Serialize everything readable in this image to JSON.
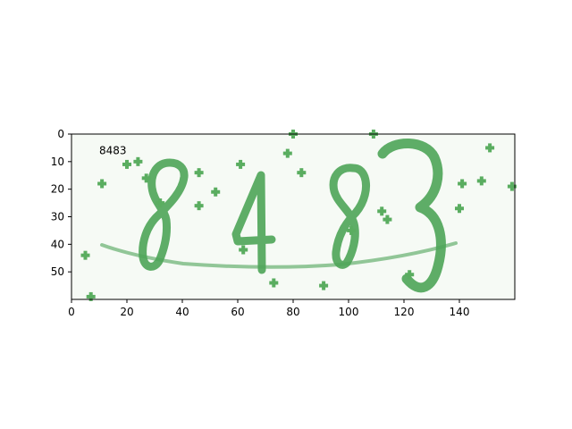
{
  "image": {
    "type": "captcha",
    "text": "8483",
    "background_color": "#f6faf5",
    "ink_color": "#4ea458",
    "noise_color": "#5aad60",
    "axes": {
      "x_range": [
        0,
        160
      ],
      "y_range": [
        0,
        60
      ],
      "y_inverted": true,
      "x_ticks": [
        0,
        20,
        40,
        60,
        80,
        100,
        120,
        140
      ],
      "y_ticks": [
        0,
        10,
        20,
        30,
        40,
        50
      ],
      "grid": false
    },
    "annotation": {
      "text": "8483",
      "x": 10,
      "y": 6
    },
    "noise_points": [
      [
        11,
        18
      ],
      [
        20,
        11
      ],
      [
        24,
        10
      ],
      [
        27,
        16
      ],
      [
        46,
        14
      ],
      [
        52,
        21
      ],
      [
        46,
        26
      ],
      [
        61,
        11
      ],
      [
        62,
        42
      ],
      [
        78,
        7
      ],
      [
        80,
        0
      ],
      [
        83,
        14
      ],
      [
        73,
        54
      ],
      [
        91,
        55
      ],
      [
        109,
        0
      ],
      [
        112,
        28
      ],
      [
        114,
        31
      ],
      [
        101,
        35
      ],
      [
        141,
        18
      ],
      [
        148,
        17
      ],
      [
        151,
        5
      ],
      [
        159,
        19
      ],
      [
        140,
        27
      ],
      [
        5,
        44
      ],
      [
        7,
        59
      ],
      [
        32,
        25
      ],
      [
        122,
        51
      ]
    ]
  }
}
